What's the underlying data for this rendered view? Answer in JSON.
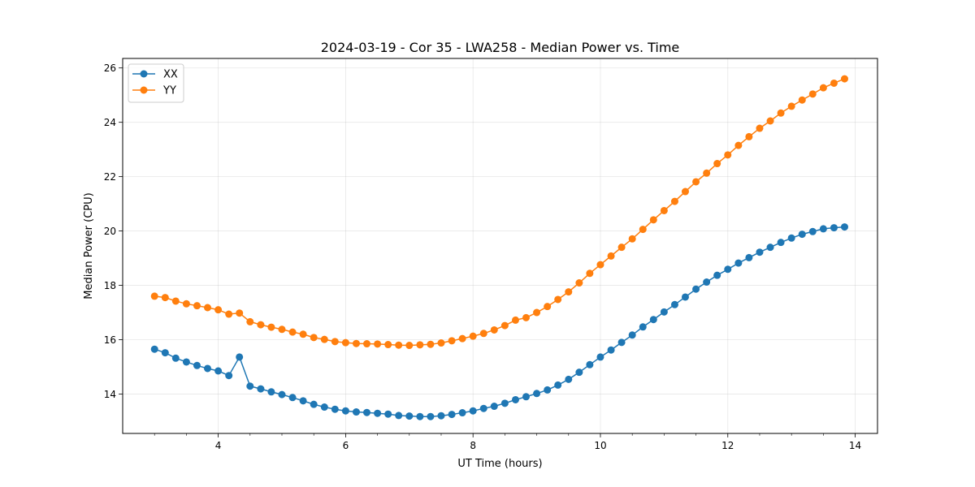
{
  "chart_data": {
    "type": "line",
    "title": "2024-03-19 - Cor 35 - LWA258 - Median Power vs. Time",
    "xlabel": "UT Time (hours)",
    "ylabel": "Median Power (CPU)",
    "xlim": [
      2.5,
      14.35
    ],
    "ylim": [
      12.55,
      26.35
    ],
    "xticks": [
      4,
      6,
      8,
      10,
      12,
      14
    ],
    "xtick_labels": [
      "4",
      "6",
      "8",
      "10",
      "12",
      "14"
    ],
    "yticks": [
      14,
      16,
      18,
      20,
      22,
      24,
      26
    ],
    "ytick_labels": [
      "14",
      "16",
      "18",
      "20",
      "22",
      "24",
      "26"
    ],
    "grid": true,
    "legend_position": "upper-left",
    "x": [
      3.0,
      3.167,
      3.333,
      3.5,
      3.667,
      3.833,
      4.0,
      4.167,
      4.333,
      4.5,
      4.667,
      4.833,
      5.0,
      5.167,
      5.333,
      5.5,
      5.667,
      5.833,
      6.0,
      6.167,
      6.333,
      6.5,
      6.667,
      6.833,
      7.0,
      7.167,
      7.333,
      7.5,
      7.667,
      7.833,
      8.0,
      8.167,
      8.333,
      8.5,
      8.667,
      8.833,
      9.0,
      9.167,
      9.333,
      9.5,
      9.667,
      9.833,
      10.0,
      10.167,
      10.333,
      10.5,
      10.667,
      10.833,
      11.0,
      11.167,
      11.333,
      11.5,
      11.667,
      11.833,
      12.0,
      12.167,
      12.333,
      12.5,
      12.667,
      12.833,
      13.0,
      13.167,
      13.333,
      13.5,
      13.667,
      13.833
    ],
    "series": [
      {
        "name": "XX",
        "color": "#1f77b4",
        "values": [
          15.65,
          15.52,
          15.32,
          15.18,
          15.05,
          14.94,
          14.85,
          14.68,
          15.36,
          14.29,
          14.19,
          14.08,
          13.98,
          13.87,
          13.75,
          13.62,
          13.52,
          13.44,
          13.38,
          13.34,
          13.32,
          13.29,
          13.26,
          13.21,
          13.19,
          13.17,
          13.17,
          13.2,
          13.25,
          13.31,
          13.38,
          13.47,
          13.55,
          13.66,
          13.79,
          13.9,
          14.02,
          14.15,
          14.33,
          14.54,
          14.8,
          15.08,
          15.36,
          15.62,
          15.9,
          16.17,
          16.47,
          16.74,
          17.02,
          17.29,
          17.57,
          17.86,
          18.12,
          18.37,
          18.59,
          18.82,
          19.02,
          19.22,
          19.4,
          19.58,
          19.74,
          19.88,
          19.98,
          20.08,
          20.12,
          20.15
        ]
      },
      {
        "name": "YY",
        "color": "#ff7f0e",
        "values": [
          17.6,
          17.55,
          17.42,
          17.32,
          17.25,
          17.18,
          17.1,
          16.94,
          16.98,
          16.66,
          16.55,
          16.46,
          16.38,
          16.28,
          16.2,
          16.08,
          16.01,
          15.93,
          15.89,
          15.86,
          15.85,
          15.84,
          15.82,
          15.8,
          15.79,
          15.81,
          15.83,
          15.88,
          15.96,
          16.04,
          16.13,
          16.23,
          16.36,
          16.52,
          16.72,
          16.81,
          17.0,
          17.22,
          17.48,
          17.76,
          18.09,
          18.44,
          18.76,
          19.08,
          19.4,
          19.71,
          20.06,
          20.41,
          20.75,
          21.09,
          21.45,
          21.81,
          22.13,
          22.48,
          22.8,
          23.15,
          23.47,
          23.78,
          24.05,
          24.34,
          24.59,
          24.82,
          25.04,
          25.27,
          25.44,
          25.6
        ]
      }
    ]
  }
}
